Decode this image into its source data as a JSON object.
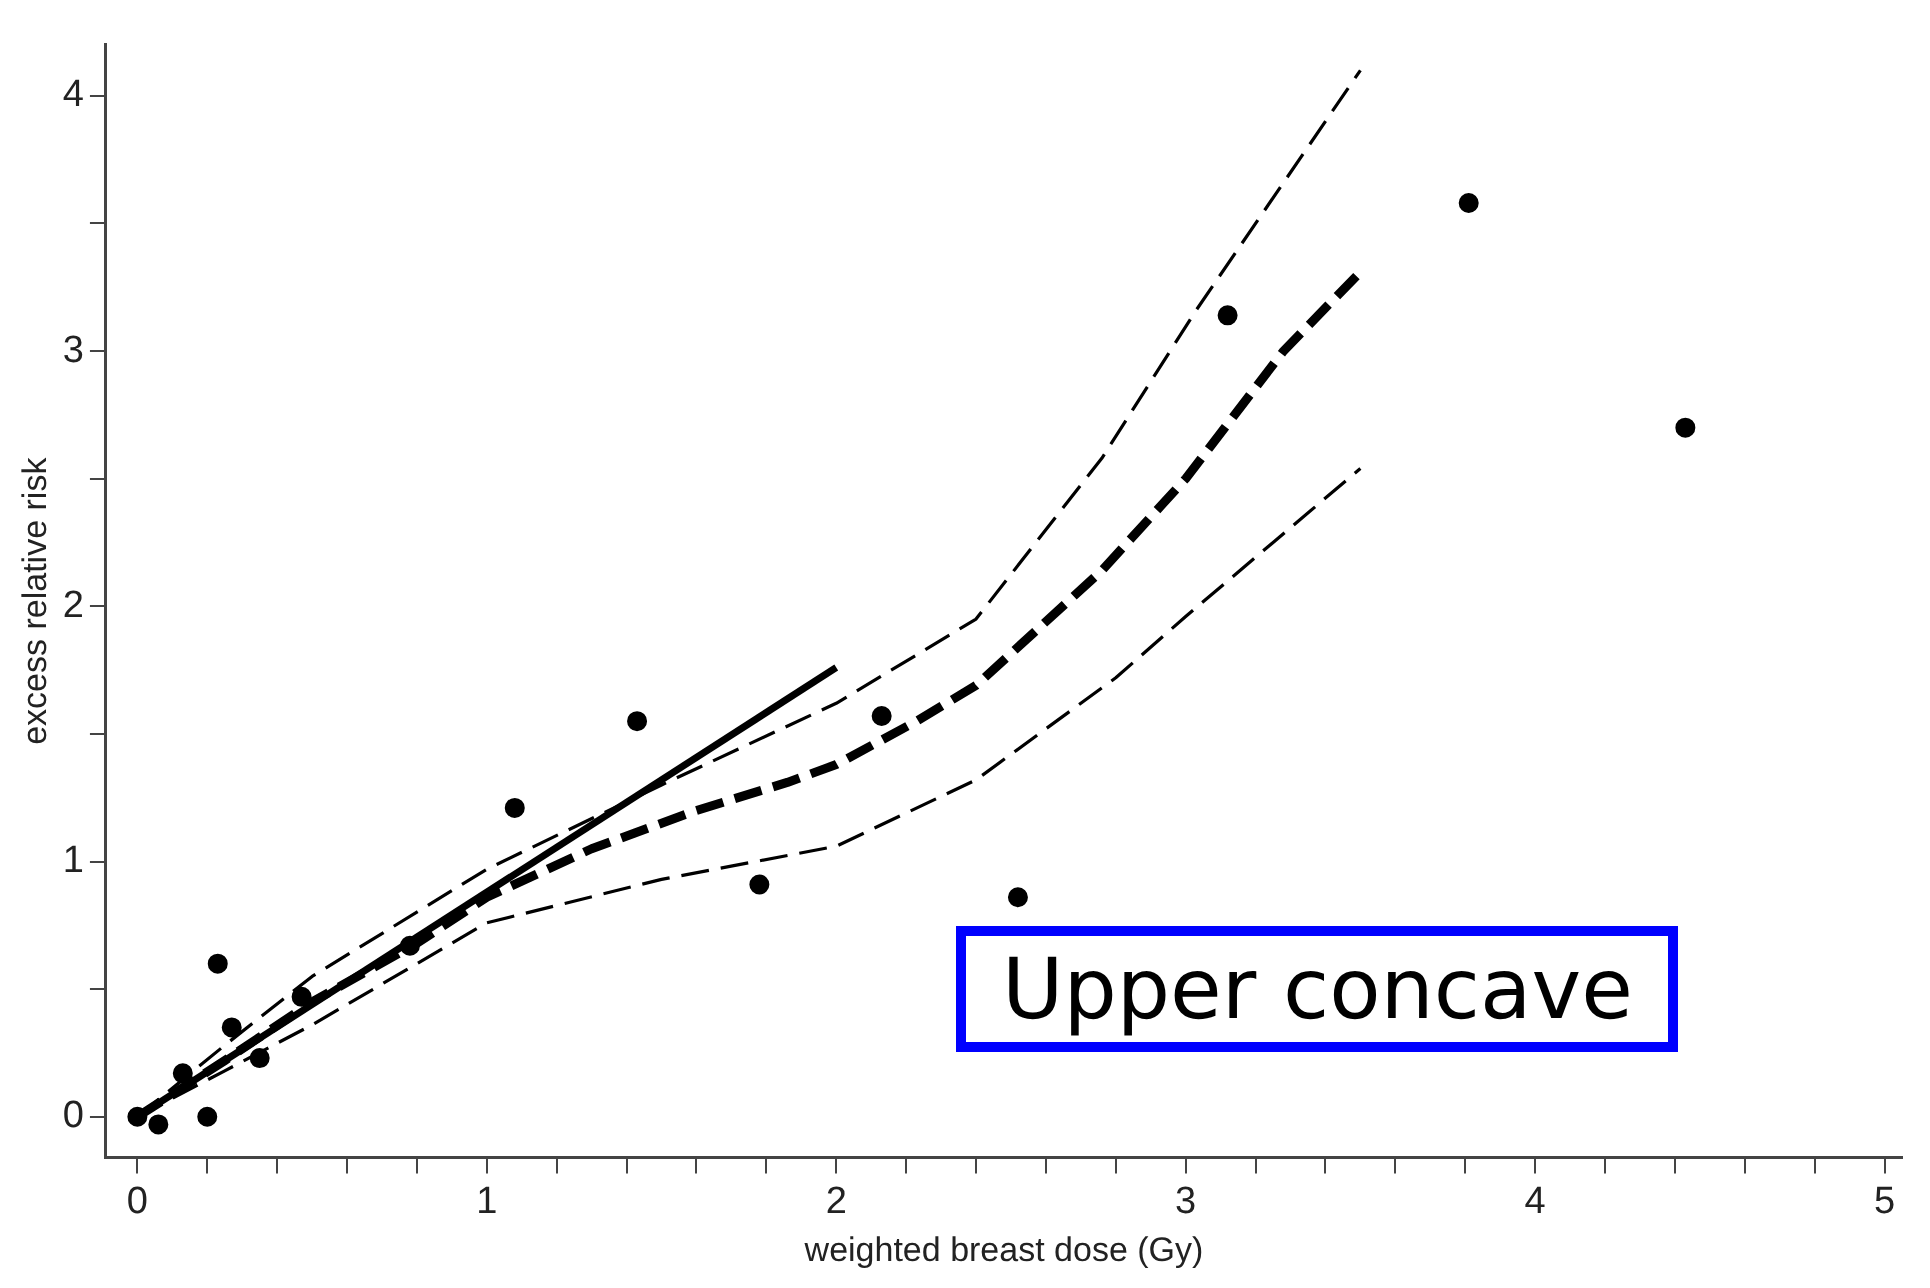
{
  "chart_data": {
    "type": "scatter",
    "xlabel": "weighted breast dose (Gy)",
    "ylabel": "excess relative risk",
    "annotations": [
      "Upper concave"
    ],
    "xlim": [
      -0.09,
      5.05
    ],
    "ylim": [
      -0.16,
      4.2
    ],
    "xticks": [
      0,
      {
        "value": 0.2,
        "label": null
      },
      {
        "value": 0.4,
        "label": null
      },
      {
        "value": 0.6,
        "label": null
      },
      {
        "value": 0.8,
        "label": null
      },
      1,
      {
        "value": 1.2,
        "label": null
      },
      {
        "value": 1.4,
        "label": null
      },
      {
        "value": 1.6,
        "label": null
      },
      {
        "value": 1.8,
        "label": null
      },
      2,
      {
        "value": 2.2,
        "label": null
      },
      {
        "value": 2.4,
        "label": null
      },
      {
        "value": 2.6,
        "label": null
      },
      {
        "value": 2.8,
        "label": null
      },
      3,
      {
        "value": 3.2,
        "label": null
      },
      {
        "value": 3.4,
        "label": null
      },
      {
        "value": 3.6,
        "label": null
      },
      {
        "value": 3.8,
        "label": null
      },
      4,
      {
        "value": 4.2,
        "label": null
      },
      {
        "value": 4.4,
        "label": null
      },
      {
        "value": 4.6,
        "label": null
      },
      {
        "value": 4.8,
        "label": null
      },
      5
    ],
    "yticks": [
      0,
      {
        "value": 0.5,
        "label": null
      },
      1,
      {
        "value": 1.5,
        "label": null
      },
      2,
      {
        "value": 2.5,
        "label": null
      },
      3,
      {
        "value": 3.5,
        "label": null
      },
      4
    ],
    "grid": false,
    "legend": false,
    "series": [
      {
        "marker": "circle",
        "color": "#000000",
        "x": [
          0,
          0.06,
          0.13,
          0.2,
          0.23,
          0.27,
          0.35,
          0.47,
          0.78,
          1.08,
          1.43,
          1.78,
          2.13,
          2.52,
          3.12,
          3.81,
          4.43
        ],
        "values": [
          0,
          -0.03,
          0.17,
          0,
          0.6,
          0.35,
          0.23,
          0.47,
          0.67,
          1.21,
          1.55,
          0.91,
          1.57,
          0.86,
          3.14,
          3.58,
          2.7
        ]
      },
      {
        "type": "line",
        "marker": "none",
        "color": "#000000",
        "line_style": "solid",
        "x": [
          0,
          2
        ],
        "values": [
          0,
          1.76
        ]
      },
      {
        "type": "line",
        "marker": "none",
        "color": "#000000",
        "line_style": "dashed",
        "x": [
          0,
          0.25,
          0.5,
          0.8,
          1.0,
          1.3,
          1.6,
          1.86,
          2.0,
          2.23,
          2.4,
          2.76,
          3.0,
          3.28,
          3.5
        ],
        "values": [
          0,
          0.22,
          0.45,
          0.68,
          0.86,
          1.05,
          1.2,
          1.31,
          1.38,
          1.55,
          1.69,
          2.14,
          2.5,
          3.0,
          3.31
        ]
      },
      {
        "type": "line",
        "marker": "none",
        "color": "#000000",
        "line_style": "dashed",
        "x": [
          0,
          0.25,
          0.5,
          1.0,
          1.5,
          2.0,
          2.4,
          2.76,
          3.03,
          3.5
        ],
        "values": [
          0,
          0.28,
          0.55,
          0.97,
          1.3,
          1.62,
          1.95,
          2.58,
          3.16,
          4.1
        ]
      },
      {
        "type": "line",
        "marker": "none",
        "color": "#000000",
        "line_style": "dashed",
        "x": [
          0,
          0.25,
          0.5,
          1.0,
          1.5,
          2.0,
          2.4,
          2.8,
          3.0,
          3.5
        ],
        "values": [
          0,
          0.18,
          0.36,
          0.76,
          0.93,
          1.06,
          1.32,
          1.72,
          1.96,
          2.54
        ]
      }
    ]
  }
}
